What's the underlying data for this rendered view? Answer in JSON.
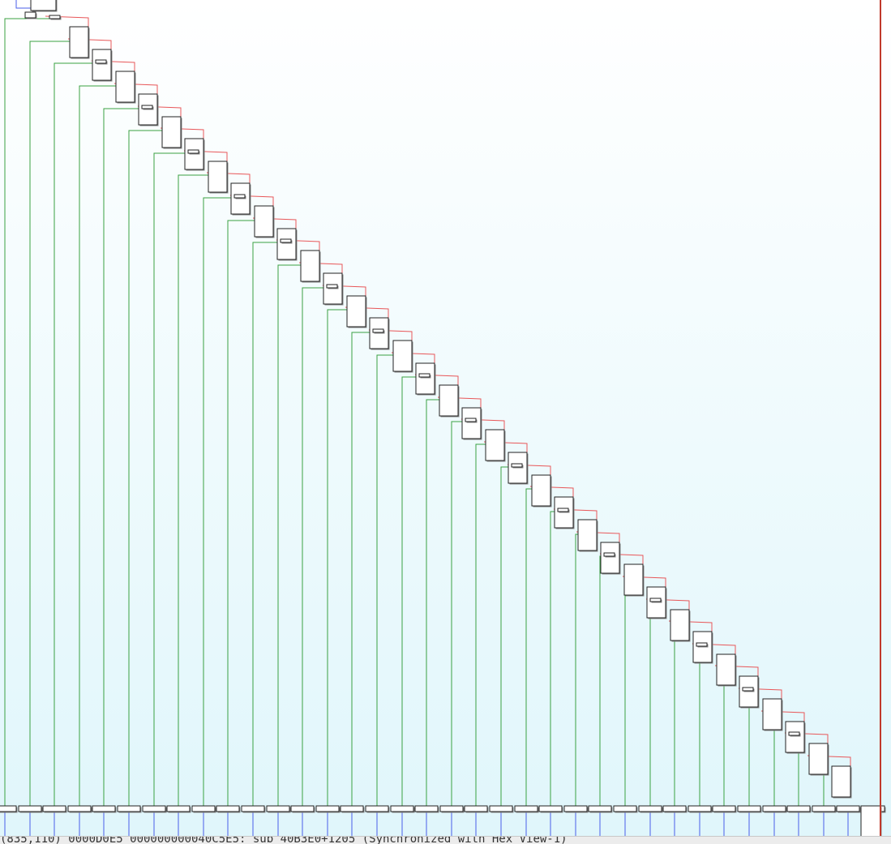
{
  "view": {
    "title": "",
    "background_top": "#ffffff",
    "background_bottom": "#e0f6fb",
    "colors": {
      "true_edge": "#3aa142",
      "false_edge": "#e8585a",
      "flow_edge": "#4a5ee8",
      "separator": "#c0392b",
      "block_fill": "#ffffff",
      "block_border": "#222222"
    },
    "graph": {
      "kind": "control-flow-graph",
      "node_shape": "rectangle",
      "diagonal_node_count": 34,
      "bottom_row_node_count": 36,
      "selected_node": "bottom-right-block"
    }
  },
  "status_bar": {
    "text": "(835,110) 0000D0E5 000000000040C5E5: sub_40B3E0+1205 (Synchronized with Hex View-1)"
  }
}
